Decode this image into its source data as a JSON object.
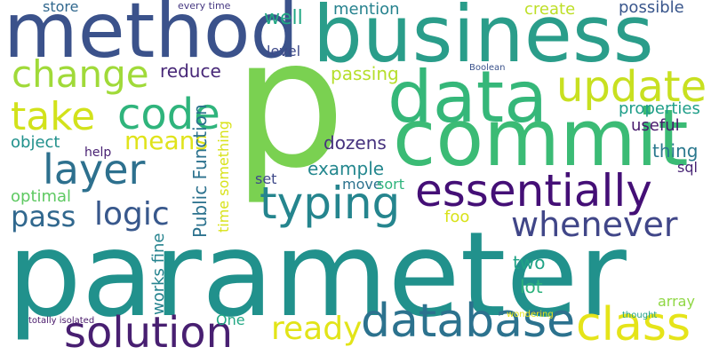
{
  "words": [
    {
      "id": "parameter",
      "text": "parameter",
      "color": "#21918c"
    },
    {
      "id": "p",
      "text": "p",
      "color": "#7ad151"
    },
    {
      "id": "business",
      "text": "business",
      "color": "#2a9d8a"
    },
    {
      "id": "method",
      "text": "method",
      "color": "#3b528b"
    },
    {
      "id": "commit",
      "text": "commit",
      "color": "#3bbb75"
    },
    {
      "id": "data",
      "text": "data",
      "color": "#35b779"
    },
    {
      "id": "essentially",
      "text": "essentially",
      "color": "#440f76"
    },
    {
      "id": "database",
      "text": "database",
      "color": "#2c728e"
    },
    {
      "id": "solution",
      "text": "solution",
      "color": "#481f71"
    },
    {
      "id": "typing",
      "text": "typing",
      "color": "#25858e"
    },
    {
      "id": "class",
      "text": "class",
      "color": "#e5e419"
    },
    {
      "id": "update",
      "text": "update",
      "color": "#c8e020"
    },
    {
      "id": "code",
      "text": "code",
      "color": "#2fb47c"
    },
    {
      "id": "change",
      "text": "change",
      "color": "#a0da39"
    },
    {
      "id": "take",
      "text": "take",
      "color": "#d2e21b"
    },
    {
      "id": "layer",
      "text": "layer",
      "color": "#2d708e"
    },
    {
      "id": "whenever",
      "text": "whenever",
      "color": "#404688"
    },
    {
      "id": "logic",
      "text": "logic",
      "color": "#38588c"
    },
    {
      "id": "ready",
      "text": "ready",
      "color": "#e2e418"
    },
    {
      "id": "pass",
      "text": "pass",
      "color": "#31688e"
    },
    {
      "id": "means",
      "text": "means",
      "color": "#e0e31b"
    },
    {
      "id": "properties",
      "text": "properties",
      "color": "#1f9e89"
    },
    {
      "id": "create",
      "text": "create",
      "color": "#bddf26"
    },
    {
      "id": "well",
      "text": "well",
      "color": "#22a884"
    },
    {
      "id": "mention",
      "text": "mention",
      "color": "#26828e"
    },
    {
      "id": "passing",
      "text": "passing",
      "color": "#b5de2b"
    },
    {
      "id": "reduce",
      "text": "reduce",
      "color": "#482878"
    },
    {
      "id": "dozens",
      "text": "dozens",
      "color": "#46327e"
    },
    {
      "id": "example",
      "text": "example",
      "color": "#24878e"
    },
    {
      "id": "useful",
      "text": "useful",
      "color": "#481a6c"
    },
    {
      "id": "thing",
      "text": "thing",
      "color": "#2a788e"
    },
    {
      "id": "object",
      "text": "object",
      "color": "#21918c"
    },
    {
      "id": "optimal",
      "text": "optimal",
      "color": "#5ec962"
    },
    {
      "id": "store",
      "text": "store",
      "color": "#31688e"
    },
    {
      "id": "possible",
      "text": "possible",
      "color": "#39568c"
    },
    {
      "id": "every-time",
      "text": "every time",
      "color": "#453781"
    },
    {
      "id": "level",
      "text": "level",
      "color": "#3e4a89"
    },
    {
      "id": "move",
      "text": "move",
      "color": "#2c728e"
    },
    {
      "id": "sort",
      "text": "sort",
      "color": "#2fb47c"
    },
    {
      "id": "set",
      "text": "set",
      "color": "#3e4989"
    },
    {
      "id": "foo",
      "text": "foo",
      "color": "#d8e219"
    },
    {
      "id": "sql",
      "text": "sql",
      "color": "#482475"
    },
    {
      "id": "help",
      "text": "help",
      "color": "#482173"
    },
    {
      "id": "two",
      "text": "two",
      "color": "#20a386"
    },
    {
      "id": "lot",
      "text": "lot",
      "color": "#2db27d"
    },
    {
      "id": "array",
      "text": "array",
      "color": "#8fd744"
    },
    {
      "id": "one",
      "text": "One",
      "color": "#22a884"
    },
    {
      "id": "boolean",
      "text": "Boolean",
      "color": "#3b528b"
    },
    {
      "id": "wondering",
      "text": "wondering",
      "color": "#e8e419"
    },
    {
      "id": "thought",
      "text": "thought",
      "color": "#1fa187"
    },
    {
      "id": "totally-isolated",
      "text": "totally isolated",
      "color": "#48186a"
    },
    {
      "id": "public-function",
      "text": "Public Function",
      "color": "#2c728e"
    },
    {
      "id": "time-something",
      "text": "time something",
      "color": "#d8e219"
    },
    {
      "id": "works-fine",
      "text": "works fine",
      "color": "#25838e"
    }
  ]
}
